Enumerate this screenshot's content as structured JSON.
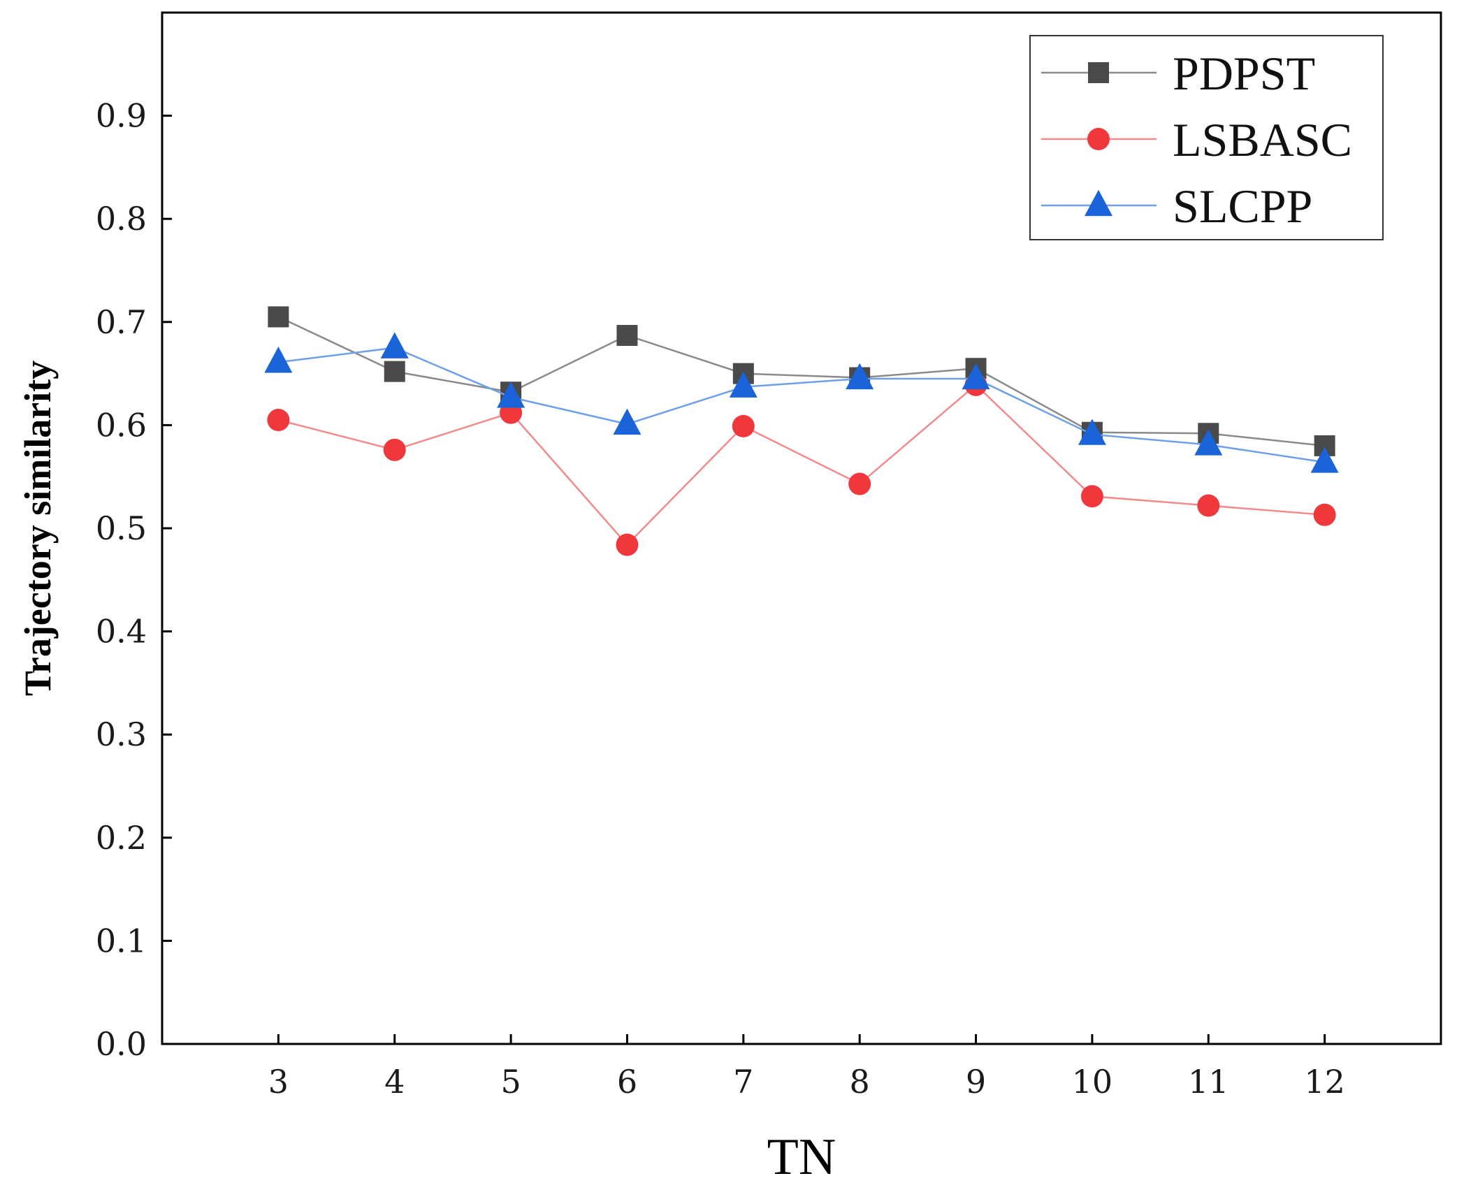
{
  "chart_data": {
    "type": "line",
    "title": "",
    "xlabel": "TN",
    "ylabel": "Trajectory similarity",
    "x": [
      3,
      4,
      5,
      6,
      7,
      8,
      9,
      10,
      11,
      12
    ],
    "xlim": [
      2,
      13
    ],
    "ylim": [
      0.0,
      1.0
    ],
    "yticks": [
      "0.0",
      "0.1",
      "0.2",
      "0.3",
      "0.4",
      "0.5",
      "0.6",
      "0.7",
      "0.8",
      "0.9"
    ],
    "xticks": [
      "3",
      "4",
      "5",
      "6",
      "7",
      "8",
      "9",
      "10",
      "11",
      "12"
    ],
    "grid": false,
    "legend_position": "top-right",
    "series": [
      {
        "name": "PDPST",
        "color": "#4a4a4a",
        "line_color": "#8a8a8a",
        "marker": "square",
        "values": [
          0.705,
          0.652,
          0.632,
          0.687,
          0.65,
          0.646,
          0.655,
          0.593,
          0.592,
          0.58
        ]
      },
      {
        "name": "LSBASC",
        "color": "#f0373c",
        "line_color": "#f28a8c",
        "marker": "circle",
        "values": [
          0.605,
          0.576,
          0.612,
          0.484,
          0.599,
          0.543,
          0.639,
          0.531,
          0.522,
          0.513
        ]
      },
      {
        "name": "SLCPP",
        "color": "#1a63d8",
        "line_color": "#6f9fe6",
        "marker": "triangle",
        "values": [
          0.661,
          0.675,
          0.627,
          0.601,
          0.637,
          0.645,
          0.645,
          0.591,
          0.581,
          0.564
        ]
      }
    ]
  }
}
